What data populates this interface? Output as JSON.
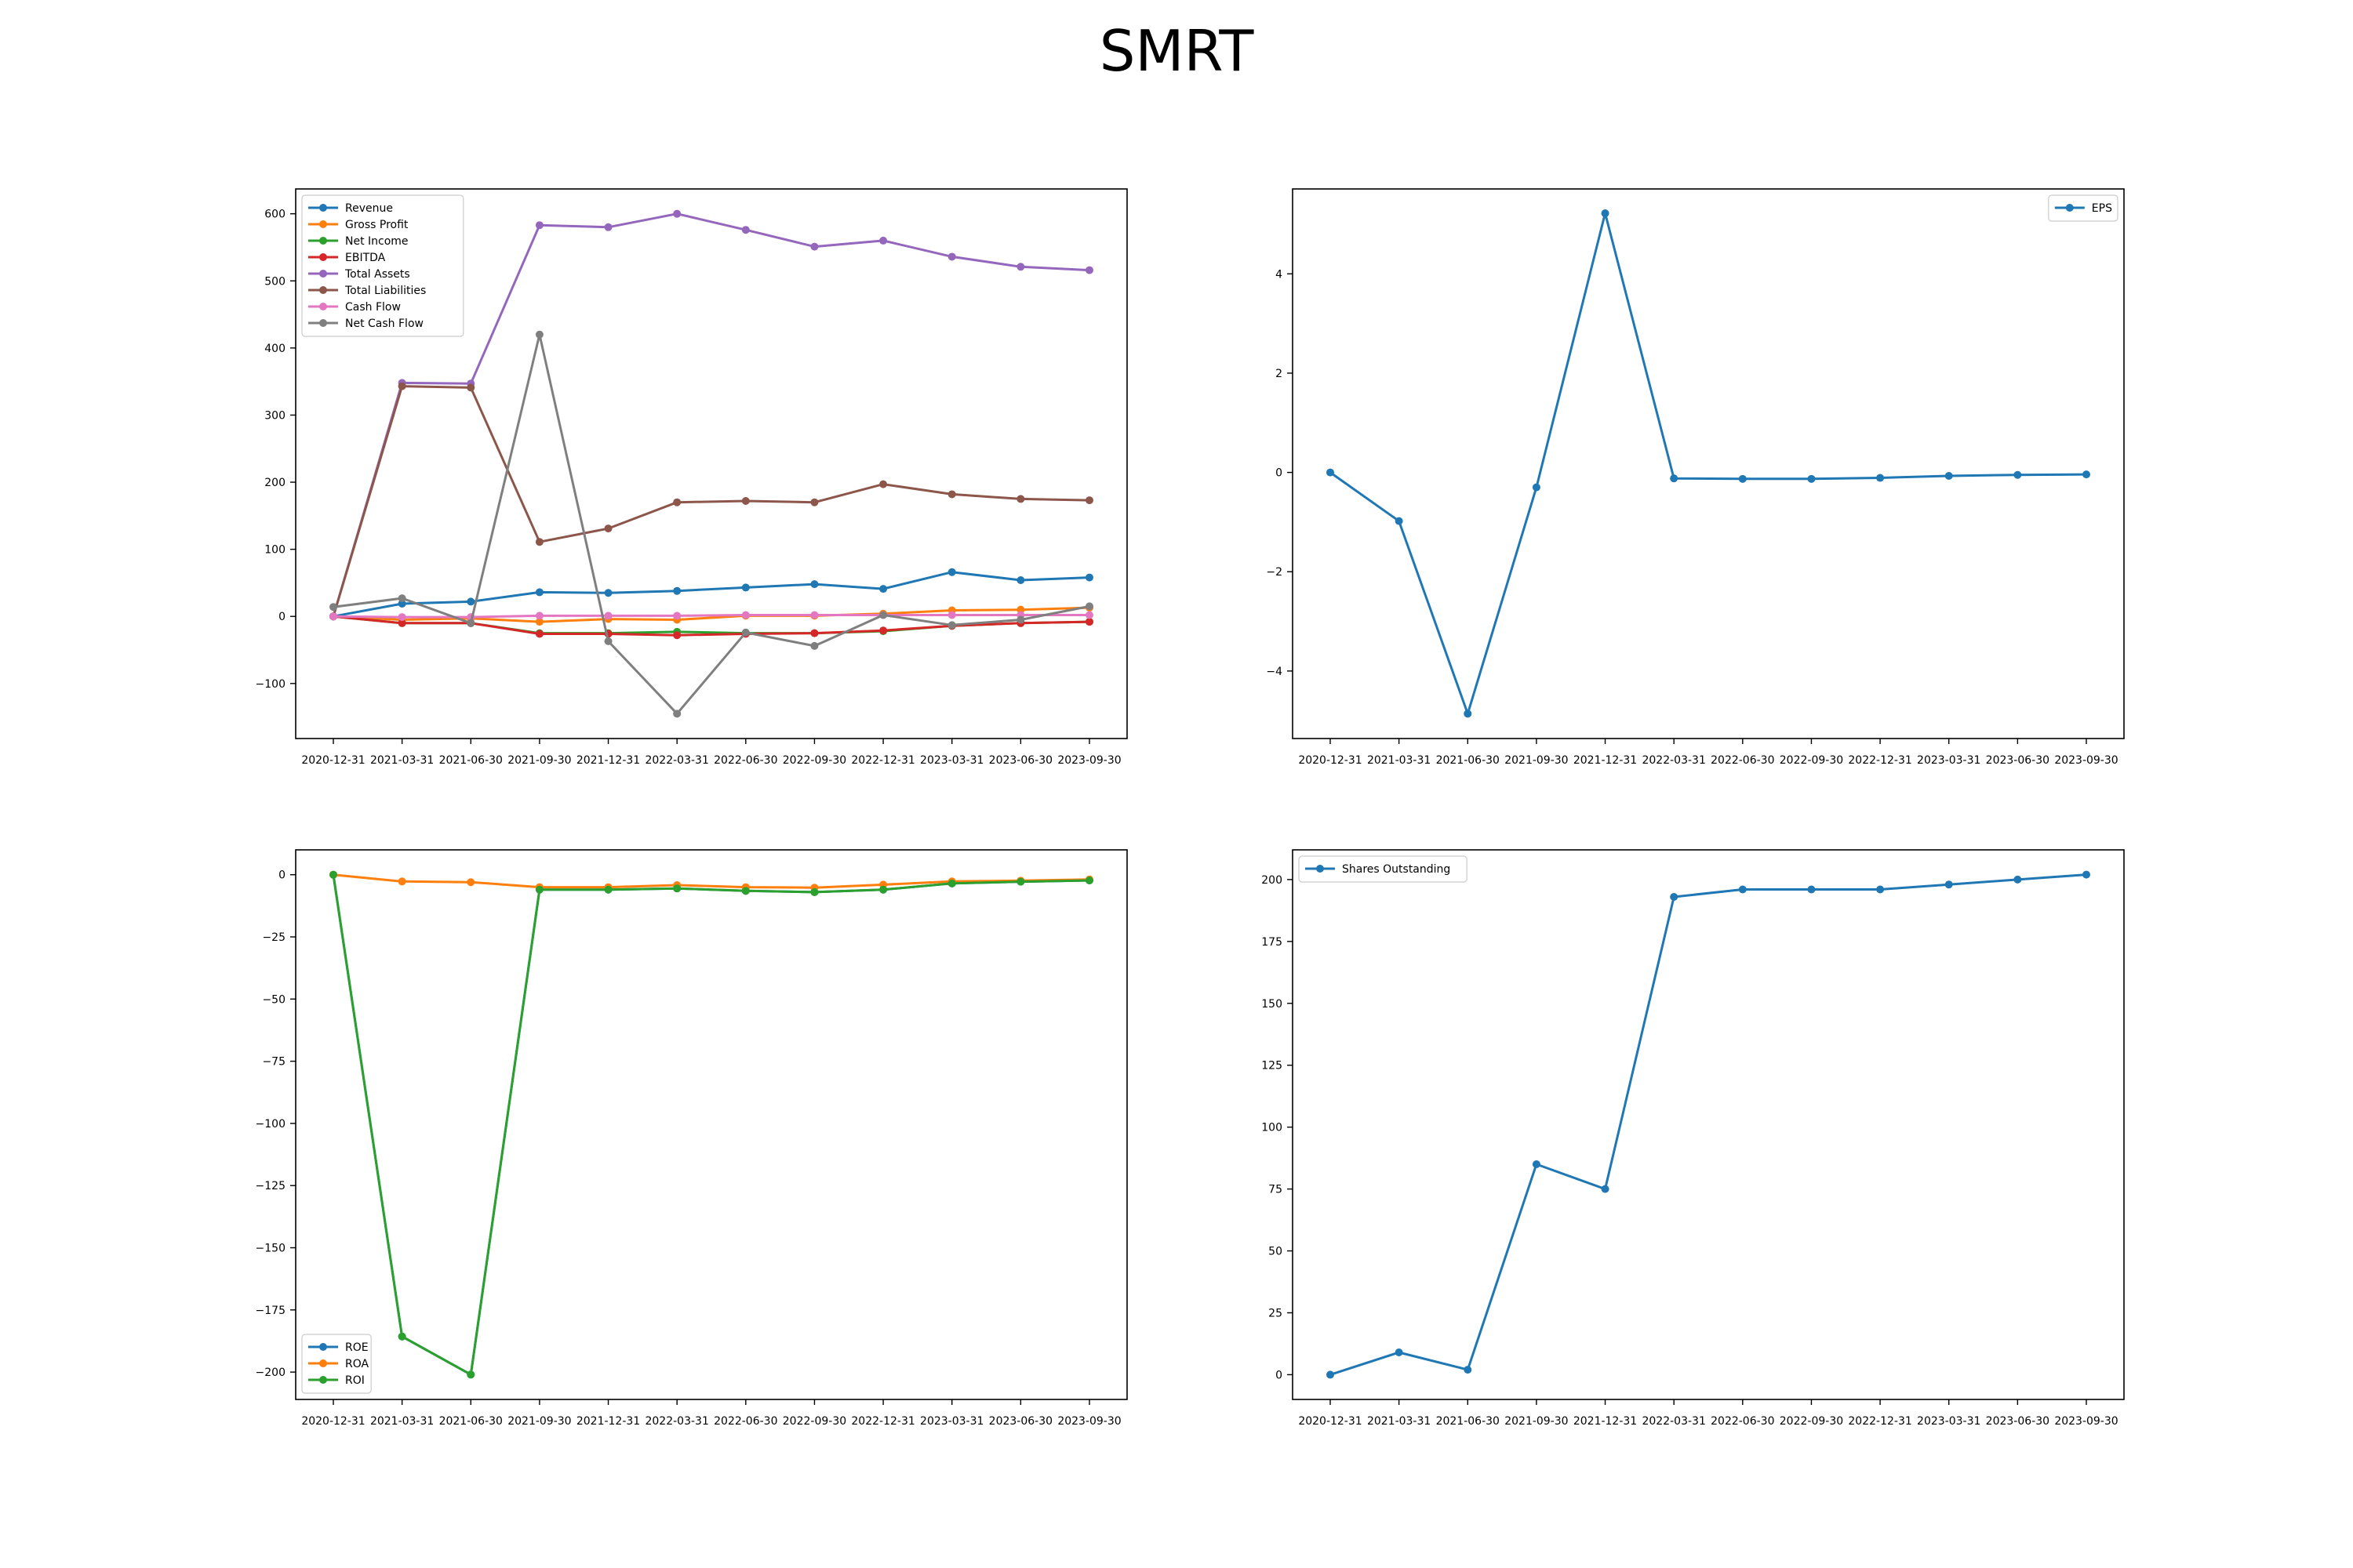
{
  "figure": {
    "title": "SMRT"
  },
  "chart_data": [
    {
      "type": "line",
      "categories": [
        "2020-12-31",
        "2021-03-31",
        "2021-06-30",
        "2021-09-30",
        "2021-12-31",
        "2022-03-31",
        "2022-06-30",
        "2022-09-30",
        "2022-12-31",
        "2023-03-31",
        "2023-06-30",
        "2023-09-30"
      ],
      "yticks": [
        -100,
        0,
        100,
        200,
        300,
        400,
        500,
        600
      ],
      "ylim": [
        -182,
        637
      ],
      "legend": "top-left",
      "series": [
        {
          "name": "Revenue",
          "color": "#1f77b4",
          "values": [
            0,
            19,
            22,
            36,
            35,
            38,
            43,
            48,
            41,
            66,
            54,
            58
          ]
        },
        {
          "name": "Gross Profit",
          "color": "#ff7f0e",
          "values": [
            0,
            -5,
            -3,
            -8,
            -4,
            -5,
            1,
            1,
            4,
            9,
            10,
            13
          ]
        },
        {
          "name": "Net Income",
          "color": "#2ca02c",
          "values": [
            0,
            -10,
            -10,
            -25,
            -25,
            -23,
            -25,
            -25,
            -22,
            -14,
            -10,
            -8
          ]
        },
        {
          "name": "EBITDA",
          "color": "#d62728",
          "values": [
            0,
            -10,
            -10,
            -26,
            -26,
            -28,
            -26,
            -25,
            -21,
            -14,
            -10,
            -8
          ]
        },
        {
          "name": "Total Assets",
          "color": "#9467bd",
          "values": [
            0,
            348,
            347,
            583,
            580,
            600,
            576,
            551,
            560,
            536,
            521,
            516
          ]
        },
        {
          "name": "Total Liabilities",
          "color": "#8c564b",
          "values": [
            0,
            343,
            341,
            111,
            131,
            170,
            172,
            170,
            197,
            182,
            175,
            173
          ]
        },
        {
          "name": "Cash Flow",
          "color": "#e377c2",
          "values": [
            0,
            -1,
            -1,
            1,
            1,
            1,
            2,
            2,
            2,
            2,
            2,
            2
          ]
        },
        {
          "name": "Net Cash Flow",
          "color": "#7f7f7f",
          "values": [
            14,
            27,
            -10,
            420,
            -37,
            -145,
            -24,
            -44,
            2,
            -13,
            -5,
            15
          ]
        }
      ]
    },
    {
      "type": "line",
      "categories": [
        "2020-12-31",
        "2021-03-31",
        "2021-06-30",
        "2021-09-30",
        "2021-12-31",
        "2022-03-31",
        "2022-06-30",
        "2022-09-30",
        "2022-12-31",
        "2023-03-31",
        "2023-06-30",
        "2023-09-30"
      ],
      "yticks": [
        -4,
        -2,
        0,
        2,
        4
      ],
      "ylim": [
        -5.36,
        5.71
      ],
      "legend": "top-right",
      "series": [
        {
          "name": "EPS",
          "color": "#1f77b4",
          "values": [
            0,
            -0.98,
            -4.86,
            -0.3,
            5.22,
            -0.12,
            -0.13,
            -0.13,
            -0.11,
            -0.07,
            -0.05,
            -0.04
          ]
        }
      ]
    },
    {
      "type": "line",
      "categories": [
        "2020-12-31",
        "2021-03-31",
        "2021-06-30",
        "2021-09-30",
        "2021-12-31",
        "2022-03-31",
        "2022-06-30",
        "2022-09-30",
        "2022-12-31",
        "2023-03-31",
        "2023-06-30",
        "2023-09-30"
      ],
      "yticks": [
        -200,
        -175,
        -150,
        -125,
        -100,
        -75,
        -50,
        -25,
        0
      ],
      "ylim": [
        -211,
        10
      ],
      "legend": "bottom-left",
      "series": [
        {
          "name": "ROE",
          "color": "#1f77b4",
          "values": [
            0,
            -185.7,
            -201,
            -6,
            -6,
            -5.5,
            -6.5,
            -7,
            -6,
            -3.5,
            -2.8,
            -2.3
          ]
        },
        {
          "name": "ROA",
          "color": "#ff7f0e",
          "values": [
            0,
            -2.7,
            -3,
            -5,
            -5,
            -4.2,
            -5,
            -5.2,
            -4,
            -2.7,
            -2.4,
            -1.9
          ]
        },
        {
          "name": "ROI",
          "color": "#2ca02c",
          "values": [
            0,
            -185.7,
            -201,
            -6,
            -6,
            -5.5,
            -6.5,
            -7,
            -6,
            -3.5,
            -2.8,
            -2.3
          ]
        }
      ]
    },
    {
      "type": "line",
      "categories": [
        "2020-12-31",
        "2021-03-31",
        "2021-06-30",
        "2021-09-30",
        "2021-12-31",
        "2022-03-31",
        "2022-06-30",
        "2022-09-30",
        "2022-12-31",
        "2023-03-31",
        "2023-06-30",
        "2023-09-30"
      ],
      "yticks": [
        0,
        25,
        50,
        75,
        100,
        125,
        150,
        175,
        200
      ],
      "ylim": [
        -10,
        212
      ],
      "legend": "top-left",
      "series": [
        {
          "name": "Shares Outstanding",
          "color": "#1f77b4",
          "values": [
            0,
            9,
            2,
            85,
            75,
            193,
            196,
            196,
            196,
            198,
            200,
            202
          ]
        }
      ]
    }
  ]
}
